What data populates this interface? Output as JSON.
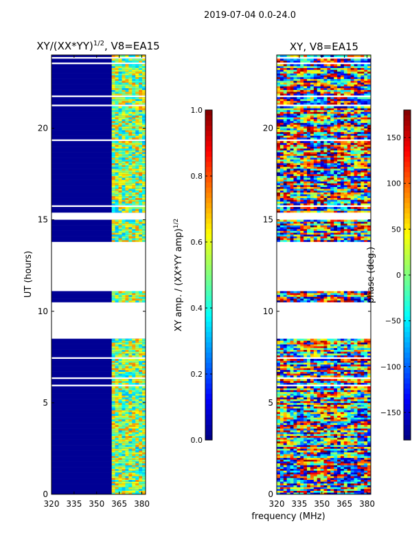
{
  "figure_title": "2019-07-04 0.0-24.0",
  "chart_data": [
    {
      "type": "heatmap",
      "panel": "left",
      "title_main": "XY/(XX*YY)",
      "title_sup": "1/2",
      "title_tail": ", V8=EA15",
      "xlabel": "",
      "ylabel": "UT (hours)",
      "x_ticks": [
        "320",
        "335",
        "350",
        "365",
        "380"
      ],
      "x_tick_values": [
        320,
        335,
        350,
        365,
        380
      ],
      "y_ticks": [
        "0",
        "5",
        "10",
        "15",
        "20"
      ],
      "y_tick_values": [
        0,
        5,
        10,
        15,
        20
      ],
      "xlim": [
        320,
        382.5
      ],
      "ylim": [
        0,
        24
      ],
      "data_gaps_hours": [
        [
          8.5,
          10.4
        ],
        [
          11.1,
          13.8
        ],
        [
          15.0,
          15.4
        ]
      ],
      "signal_band_mhz": [
        360,
        383
      ],
      "colorbar": {
        "label_main": "XY amp. / (XX*YY amp)",
        "label_sup": "1/2",
        "ticks": [
          "0.0",
          "0.2",
          "0.4",
          "0.6",
          "0.8",
          "1.0"
        ],
        "tick_values": [
          0.0,
          0.2,
          0.4,
          0.6,
          0.8,
          1.0
        ],
        "range": [
          0.0,
          1.0
        ],
        "colormap": "jet"
      }
    },
    {
      "type": "heatmap",
      "panel": "right",
      "title_main": "XY, V8=EA15",
      "xlabel": "frequency (MHz)",
      "ylabel": "",
      "x_ticks": [
        "320",
        "335",
        "350",
        "365",
        "380"
      ],
      "x_tick_values": [
        320,
        335,
        350,
        365,
        380
      ],
      "y_ticks": [
        "0",
        "5",
        "10",
        "15",
        "20"
      ],
      "y_tick_values": [
        0,
        5,
        10,
        15,
        20
      ],
      "xlim": [
        320,
        382.5
      ],
      "ylim": [
        0,
        24
      ],
      "data_gaps_hours": [
        [
          8.5,
          10.4
        ],
        [
          11.1,
          13.8
        ],
        [
          15.0,
          15.4
        ]
      ],
      "colorbar": {
        "label_main": "phase (deg.)",
        "ticks": [
          "−150",
          "−100",
          "−50",
          "0",
          "50",
          "100",
          "150"
        ],
        "tick_values": [
          -150,
          -100,
          -50,
          0,
          50,
          100,
          150
        ],
        "range": [
          -180,
          180
        ],
        "colormap": "jet"
      }
    }
  ]
}
